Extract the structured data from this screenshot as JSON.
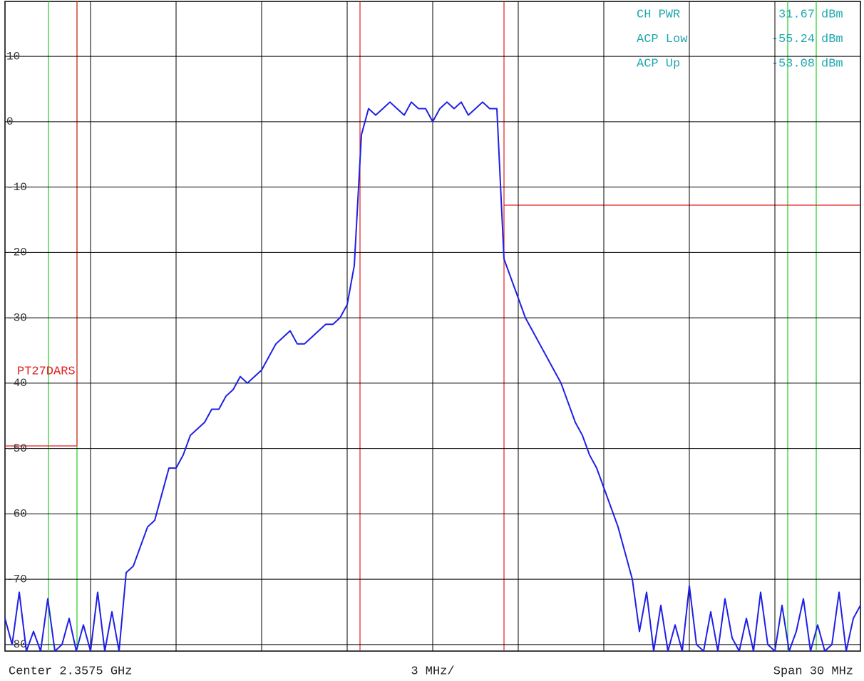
{
  "chart_data": {
    "type": "line",
    "ylim": [
      -81,
      18.4
    ],
    "yticks": [
      10,
      0,
      -10,
      -20,
      -30,
      -40,
      -50,
      -60,
      -70,
      -80
    ],
    "xlim": [
      -15,
      15
    ],
    "grid": true,
    "color": "#1f1fe6",
    "x": [
      -15,
      -14.75,
      -14.5,
      -14.25,
      -14,
      -13.75,
      -13.5,
      -13.25,
      -13,
      -12.75,
      -12.5,
      -12.25,
      -12,
      -11.75,
      -11.5,
      -11.25,
      -11,
      -10.75,
      -10.5,
      -10.25,
      -10,
      -9.75,
      -9.5,
      -9.25,
      -9,
      -8.75,
      -8.5,
      -8.25,
      -8,
      -7.75,
      -7.5,
      -7.25,
      -7,
      -6.75,
      -6.5,
      -6.25,
      -6,
      -5.75,
      -5.5,
      -5.25,
      -5,
      -4.75,
      -4.5,
      -4.25,
      -4,
      -3.75,
      -3.5,
      -3.25,
      -3,
      -2.75,
      -2.5,
      -2.25,
      -2,
      -1.75,
      -1.5,
      -1.25,
      -1,
      -0.75,
      -0.5,
      -0.25,
      0,
      0.25,
      0.5,
      0.75,
      1,
      1.25,
      1.5,
      1.75,
      2,
      2.25,
      2.5,
      2.75,
      3,
      3.25,
      3.5,
      3.75,
      4,
      4.25,
      4.5,
      4.75,
      5,
      5.25,
      5.5,
      5.75,
      6,
      6.25,
      6.5,
      6.75,
      7,
      7.25,
      7.5,
      7.75,
      8,
      8.25,
      8.5,
      8.75,
      9,
      9.25,
      9.5,
      9.75,
      10,
      10.25,
      10.5,
      10.75,
      11,
      11.25,
      11.5,
      11.75,
      12,
      12.25,
      12.5,
      12.75,
      13,
      13.25,
      13.5,
      13.75,
      14,
      14.25,
      14.5,
      14.75,
      15
    ],
    "values": [
      -76,
      -80,
      -72,
      -81,
      -78,
      -81,
      -73,
      -81,
      -80,
      -76,
      -81,
      -77,
      -81,
      -72,
      -81,
      -75,
      -81,
      -69,
      -68,
      -65,
      -62,
      -61,
      -57,
      -53,
      -53,
      -51,
      -48,
      -47,
      -46,
      -44,
      -44,
      -42,
      -41,
      -39,
      -40,
      -39,
      -38,
      -36,
      -34,
      -33,
      -32,
      -34,
      -34,
      -33,
      -32,
      -31,
      -31,
      -30,
      -28,
      -22,
      -2,
      2,
      1,
      2,
      3,
      2,
      1,
      3,
      2,
      2,
      0,
      2,
      3,
      2,
      3,
      1,
      2,
      3,
      2,
      2,
      -21,
      -24,
      -27,
      -30,
      -32,
      -34,
      -36,
      -38,
      -40,
      -43,
      -46,
      -48,
      -51,
      -53,
      -56,
      -59,
      -62,
      -66,
      -70,
      -78,
      -72,
      -81,
      -74,
      -81,
      -77,
      -81,
      -71,
      -80,
      -81,
      -75,
      -81,
      -73,
      -79,
      -81,
      -76,
      -81,
      -72,
      -80,
      -81,
      -74,
      -81,
      -78,
      -73,
      -81,
      -77,
      -81,
      -80,
      -72,
      -81,
      -76,
      -74
    ],
    "annotation": "PT27DARS",
    "measurements": [
      {
        "label": "CH PWR",
        "value": 31.67,
        "unit": "dBm"
      },
      {
        "label": "ACP Low",
        "value": -55.24,
        "unit": "dBm"
      },
      {
        "label": "ACP Up",
        "value": -53.08,
        "unit": "dBm"
      }
    ],
    "footer": {
      "left": "Center 2.3575 GHz",
      "center": "3 MHz/",
      "right": "Span 30 MHz"
    }
  }
}
